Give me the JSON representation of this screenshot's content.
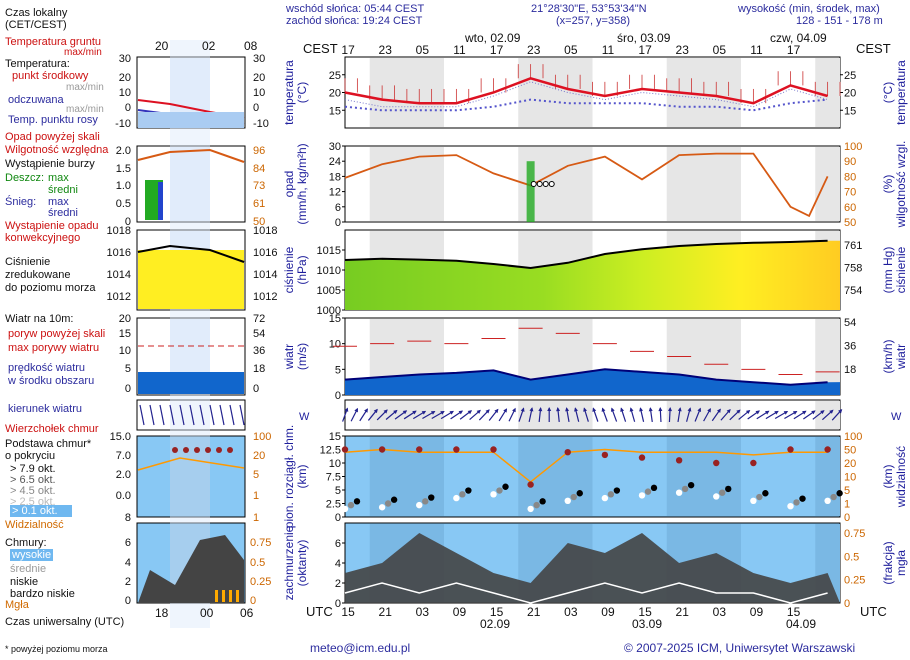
{
  "header": {
    "sunrise": "wschód słońca: 05:44 CEST",
    "sunset": "zachód słońca: 19:24 CEST",
    "coords": "21°28'30\"E, 53°53'34\"N",
    "grid": "(x=257, y=358)",
    "height_label": "wysokość (min, środek, max)",
    "height_values": "128 - 151 - 178 m"
  },
  "legend": {
    "local_time": "Czas lokalny",
    "local_time_zone": "(CET/CEST)",
    "ground_temp": "Temperatura gruntu",
    "ground_temp_range": "max/min",
    "temperature": "Temperatura:",
    "center_point": "punkt środkowy",
    "apparent": "odczuwana",
    "dew_point": "Temp. punktu rosy",
    "fall_above_zero": "Opad powyżej skali",
    "rel_humidity": "Wilgotność względna",
    "storm": "Wystąpienie burzy",
    "rain": "Deszcz:",
    "snow": "Śnieg:",
    "max": "max",
    "mean": "średni",
    "precip_occurrence": "Wystąpienie opadu",
    "precip_convective": "konwekcyjnego",
    "pressure_1": "Ciśnienie",
    "pressure_2": "zredukowane",
    "pressure_3": "do poziomu morza",
    "wind_title": "Wiatr na 10m:",
    "gust_above": "poryw powyżej skali",
    "gust_max": "max porywy wiatru",
    "wind_speed": "prędkość wiatru",
    "wind_area": "w środku obszaru",
    "wind_dir": "kierunek wiatru",
    "cloud_top": "Wierzchołek chmur",
    "cloud_base": "Podstawa chmur*",
    "cloud_cover": "o pokryciu",
    "okt": [
      "> 7.9 okt.",
      "> 6.5 okt.",
      "> 4.5 okt.",
      "> 2.5 okt.",
      "> 0.1 okt."
    ],
    "visibility": "Widzialność",
    "clouds": "Chmury:",
    "high": "wysokie",
    "middle": "średnie",
    "low": "niskie",
    "very_low": "bardzo niskie",
    "fog": "Mgła",
    "utc_title": "Czas uniwersalny (UTC)",
    "footnote": "* powyżej poziomu morza"
  },
  "axis_titles": {
    "temp_left": "temperatura",
    "temp_left_unit": "(°C)",
    "temp_right_unit": "(°C)",
    "temp_right": "temperatura",
    "prec_left": "opad",
    "prec_left_unit": "(mm/h, kg/m²h)",
    "prec_right_unit": "(%)",
    "prec_right": "wilgotność wzgl.",
    "pres_left": "ciśnienie",
    "pres_left_unit": "(hPa)",
    "pres_right_unit": "(mm Hg)",
    "pres_right": "ciśnienie",
    "wind_left": "wiatr",
    "wind_left_unit": "(m/s)",
    "wind_right_unit": "(km/h)",
    "wind_right": "wiatr",
    "cloud_left": "pion. rozciągł. chm.",
    "cloud_left_unit": "(km)",
    "cloud_right_unit": "(km)",
    "cloud_right": "widzialność",
    "cov_left": "zachmurzenie",
    "cov_left_unit": "(oktanty)",
    "cov_right_unit": "(frakcja)",
    "cov_right": "mgła"
  },
  "time": {
    "cest_label": "CEST",
    "utc_label": "UTC",
    "top_ticks": [
      "17",
      "23",
      "05",
      "11",
      "17",
      "23",
      "05",
      "11",
      "17",
      "23",
      "05",
      "11",
      "17"
    ],
    "bottom_ticks": [
      "15",
      "21",
      "03",
      "09",
      "15",
      "21",
      "03",
      "09",
      "15",
      "21",
      "03",
      "09",
      "15"
    ],
    "days_top": [
      "wto, 02.09",
      "śro, 03.09",
      "czw, 04.09"
    ],
    "days_bottom": [
      "02.09",
      "03.09",
      "04.09"
    ],
    "legend_top_ticks": [
      "20",
      "02",
      "08"
    ],
    "legend_bottom_ticks": [
      "18",
      "00",
      "06"
    ]
  },
  "footer": {
    "email": "meteo@icm.edu.pl",
    "copyright": "© 2007-2025 ICM, Uniwersytet Warszawski"
  },
  "chart_data": [
    {
      "type": "line",
      "title": "temperatura",
      "ylabel": "(°C)",
      "ylim": [
        10,
        30
      ],
      "yticks": [
        15,
        20,
        25
      ],
      "x_hours": [
        0,
        6,
        12,
        18,
        24,
        30,
        36,
        42,
        48,
        54,
        60,
        66,
        72,
        78
      ],
      "series": [
        {
          "name": "punkt środkowy",
          "values": [
            20,
            18,
            17,
            17,
            20,
            24,
            21,
            19,
            21,
            20,
            19,
            17,
            22,
            19
          ]
        },
        {
          "name": "odczuwana",
          "values": [
            18,
            16,
            16,
            16,
            19,
            23,
            20,
            18,
            20,
            19,
            18,
            16,
            21,
            18
          ]
        },
        {
          "name": "Temp. punktu rosy",
          "values": [
            16,
            15,
            15,
            15,
            16,
            18,
            17,
            17,
            17,
            16,
            16,
            15,
            17,
            18
          ]
        }
      ]
    },
    {
      "type": "line",
      "title": "opad / wilgotność względna",
      "ylabel": "(mm/h, kg/m²h)",
      "ylim": [
        0,
        30
      ],
      "yticks": [
        0,
        6,
        12,
        18,
        24,
        30
      ],
      "y2lim": [
        50,
        100
      ],
      "y2ticks": [
        50,
        60,
        70,
        80,
        90,
        100
      ],
      "x_hours": [
        0,
        6,
        12,
        18,
        24,
        30,
        36,
        42,
        48,
        54,
        60,
        66,
        72,
        75,
        78
      ],
      "series": [
        {
          "name": "Wilgotność względna",
          "values": [
            79,
            88,
            93,
            94,
            82,
            74,
            87,
            93,
            78,
            94,
            95,
            95,
            60,
            54,
            80
          ]
        },
        {
          "name": "Deszcz: max",
          "values": [
            0,
            0,
            0,
            0,
            0,
            24,
            0,
            0,
            0,
            0,
            0,
            0,
            0,
            0,
            0
          ]
        }
      ]
    },
    {
      "type": "area",
      "title": "ciśnienie",
      "ylabel": "(hPa)",
      "ylim": [
        1000,
        1020
      ],
      "yticks": [
        1000,
        1005,
        1010,
        1015
      ],
      "y2ticks": [
        754,
        758,
        761
      ],
      "x_hours": [
        0,
        6,
        12,
        18,
        24,
        30,
        36,
        42,
        48,
        54,
        60,
        66,
        72,
        78
      ],
      "series": [
        {
          "name": "Ciśnienie zredukowane do poziomu morza",
          "values": [
            1012.5,
            1012.8,
            1012.6,
            1012.3,
            1011.5,
            1010.5,
            1011.8,
            1014.0,
            1015.2,
            1016.0,
            1016.5,
            1016.8,
            1017.0,
            1017.3
          ]
        }
      ]
    },
    {
      "type": "line",
      "title": "wiatr",
      "ylabel": "(m/s)",
      "ylim": [
        0,
        15
      ],
      "yticks": [
        0,
        5,
        10,
        15
      ],
      "y2ticks": [
        18,
        36,
        54
      ],
      "x_hours": [
        0,
        6,
        12,
        18,
        24,
        30,
        36,
        42,
        48,
        54,
        60,
        66,
        72,
        78
      ],
      "series": [
        {
          "name": "prędkość wiatru",
          "values": [
            3.0,
            3.5,
            4.0,
            4.3,
            4.8,
            3.0,
            4.0,
            5.0,
            4.5,
            4.0,
            3.0,
            2.5,
            2.0,
            2.5
          ]
        },
        {
          "name": "max porywy wiatru",
          "values": [
            9.5,
            10.0,
            10.5,
            10.0,
            11.0,
            13.0,
            12.0,
            10.0,
            8.5,
            7.5,
            6.0,
            5.0,
            4.0,
            4.5
          ]
        }
      ]
    },
    {
      "type": "scatter",
      "title": "pion. rozciągł. chm. / widzialność",
      "ylabel": "(km)",
      "ylim": [
        0,
        15
      ],
      "yticks": [
        0.0,
        2.5,
        5.0,
        7.5,
        10.0,
        12.5,
        15.0
      ],
      "y2ticks": [
        0,
        1,
        5,
        10,
        20,
        50,
        100
      ],
      "x_hours": [
        0,
        6,
        12,
        18,
        24,
        30,
        36,
        42,
        48,
        54,
        60,
        66,
        72,
        78
      ],
      "series": [
        {
          "name": "Wierzchołek chmur",
          "values": [
            12.5,
            12.5,
            12.5,
            12.5,
            12.5,
            6.0,
            12.0,
            11.5,
            11.0,
            10.5,
            10.0,
            10.0,
            12.5,
            12.5
          ]
        },
        {
          "name": "Podstawa chmur",
          "values": [
            1.5,
            1.8,
            2.2,
            3.5,
            4.2,
            1.5,
            3.0,
            3.5,
            4.0,
            4.5,
            3.8,
            3.0,
            2.0,
            3.0
          ]
        },
        {
          "name": "Widzialność",
          "values": [
            12.0,
            12.5,
            12.0,
            12.0,
            12.0,
            6.5,
            12.0,
            12.5,
            12.0,
            12.0,
            12.0,
            11.5,
            12.0,
            12.0
          ]
        }
      ]
    },
    {
      "type": "area",
      "title": "zachmurzenie / mgła",
      "ylabel": "(oktanty)",
      "ylim": [
        0,
        8
      ],
      "yticks": [
        0,
        2,
        4,
        6
      ],
      "y2ticks": [
        0,
        0.25,
        0.5,
        0.75
      ],
      "x_hours": [
        0,
        6,
        12,
        18,
        24,
        30,
        36,
        42,
        48,
        54,
        60,
        66,
        72,
        78
      ],
      "series": [
        {
          "name": "niskie",
          "values": [
            3,
            4,
            7,
            5,
            3,
            2,
            6,
            5,
            7,
            4,
            5,
            3,
            2,
            3
          ]
        },
        {
          "name": "wysokie",
          "values": [
            1,
            2,
            1,
            2,
            1,
            0,
            1,
            2,
            1,
            2,
            1,
            1,
            0,
            1
          ]
        }
      ]
    }
  ]
}
